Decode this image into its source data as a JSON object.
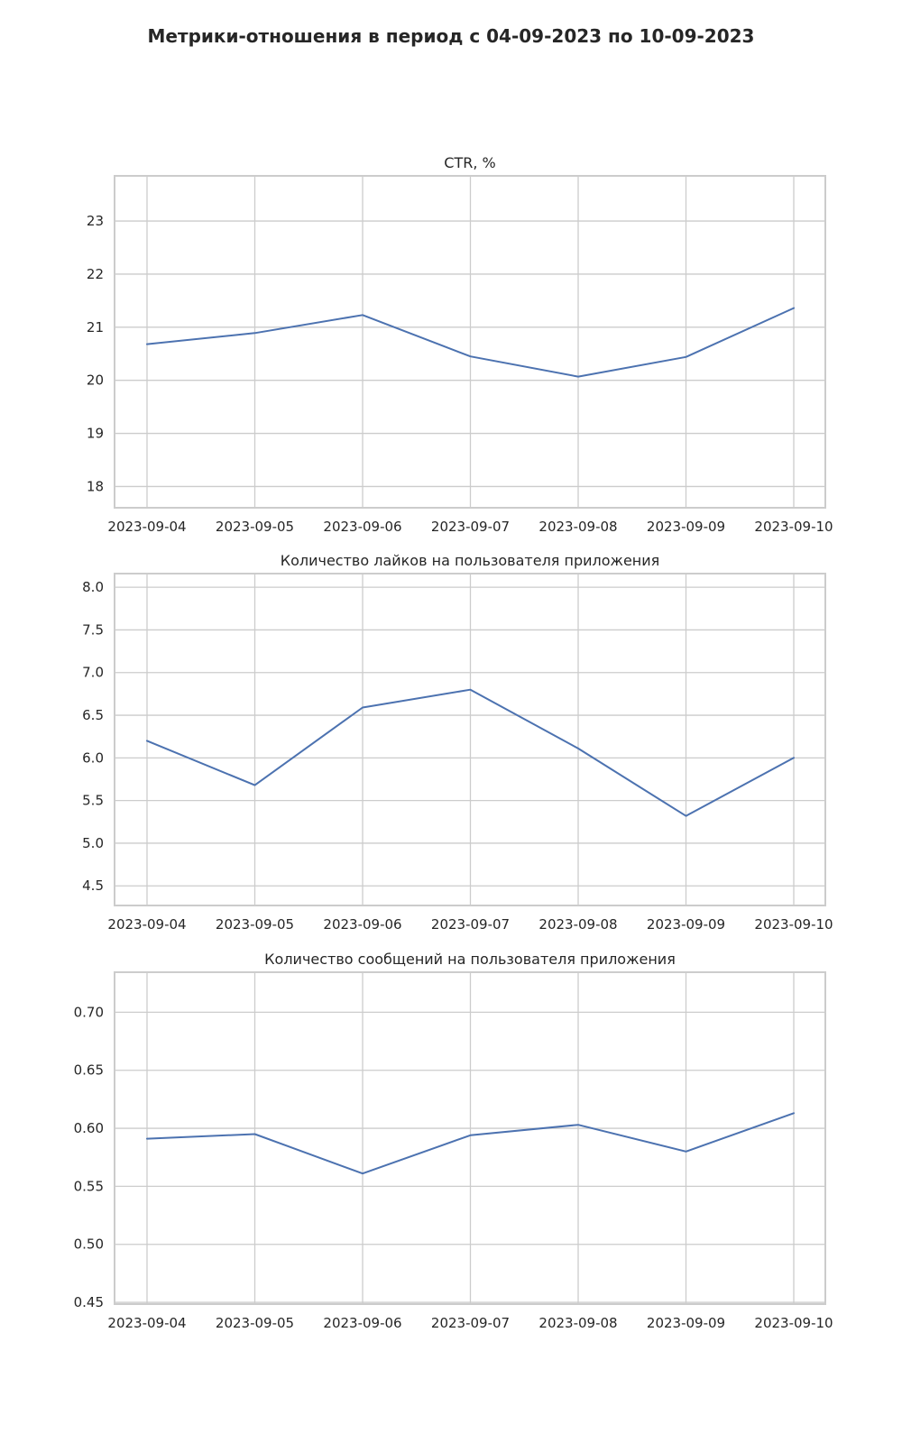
{
  "figure": {
    "title": "Метрики-отношения в период с 04-09-2023 по 10-09-2023"
  },
  "colors": {
    "line": "#4c72b0",
    "grid": "#cccccc",
    "background": "#ffffff"
  },
  "chart_data": [
    {
      "type": "line",
      "title": "CTR, %",
      "xlabel": "",
      "ylabel": "",
      "grid": true,
      "x": [
        "2023-09-04",
        "2023-09-05",
        "2023-09-06",
        "2023-09-07",
        "2023-09-08",
        "2023-09-09",
        "2023-09-10"
      ],
      "series": [
        {
          "values": [
            20.68,
            20.89,
            21.23,
            20.45,
            20.07,
            20.44,
            21.36
          ]
        }
      ],
      "ylim": [
        17.6,
        23.85
      ],
      "yticks": [
        18,
        19,
        20,
        21,
        22,
        23
      ],
      "ytick_labels": [
        "18",
        "19",
        "20",
        "21",
        "22",
        "23"
      ]
    },
    {
      "type": "line",
      "title": "Количество лайков на пользователя приложения",
      "xlabel": "",
      "ylabel": "",
      "grid": true,
      "x": [
        "2023-09-04",
        "2023-09-05",
        "2023-09-06",
        "2023-09-07",
        "2023-09-08",
        "2023-09-09",
        "2023-09-10"
      ],
      "series": [
        {
          "values": [
            6.2,
            5.68,
            6.59,
            6.8,
            6.11,
            5.32,
            6.0
          ]
        }
      ],
      "ylim": [
        4.27,
        8.16
      ],
      "yticks": [
        4.5,
        5.0,
        5.5,
        6.0,
        6.5,
        7.0,
        7.5,
        8.0
      ],
      "ytick_labels": [
        "4.5",
        "5.0",
        "5.5",
        "6.0",
        "6.5",
        "7.0",
        "7.5",
        "8.0"
      ]
    },
    {
      "type": "line",
      "title": "Количество сообщений на пользователя приложения",
      "xlabel": "",
      "ylabel": "",
      "grid": true,
      "x": [
        "2023-09-04",
        "2023-09-05",
        "2023-09-06",
        "2023-09-07",
        "2023-09-08",
        "2023-09-09",
        "2023-09-10"
      ],
      "series": [
        {
          "values": [
            0.591,
            0.595,
            0.561,
            0.594,
            0.603,
            0.58,
            0.613
          ]
        }
      ],
      "ylim": [
        0.4485,
        0.7345
      ],
      "yticks": [
        0.45,
        0.5,
        0.55,
        0.6,
        0.65,
        0.7
      ],
      "ytick_labels": [
        "0.45",
        "0.50",
        "0.55",
        "0.60",
        "0.65",
        "0.70"
      ]
    }
  ]
}
